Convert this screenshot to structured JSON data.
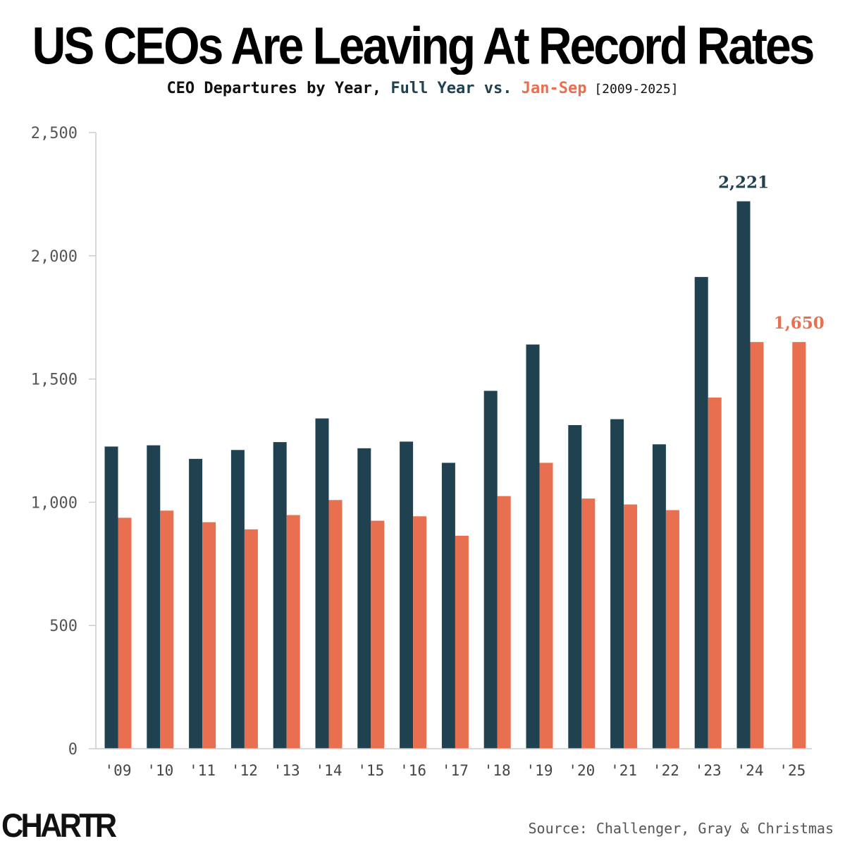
{
  "header": {
    "title": "US CEOs Are Leaving At Record Rates",
    "subtitle_prefix": "CEO Departures by Year, ",
    "subtitle_full_year": "Full Year",
    "subtitle_vs": " vs. ",
    "subtitle_jan_sep": "Jan-Sep",
    "subtitle_range": " [2009-2025]"
  },
  "footer": {
    "logo": "CHARTR",
    "source": "Source: Challenger, Gray & Christmas"
  },
  "colors": {
    "full_year": "#20414f",
    "jan_sep": "#e86f4f"
  },
  "chart_data": {
    "type": "bar",
    "categories": [
      "'09",
      "'10",
      "'11",
      "'12",
      "'13",
      "'14",
      "'15",
      "'16",
      "'17",
      "'18",
      "'19",
      "'20",
      "'21",
      "'22",
      "'23",
      "'24",
      "'25"
    ],
    "series": [
      {
        "name": "Full Year",
        "color": "#20414f",
        "values": [
          1226,
          1231,
          1176,
          1212,
          1244,
          1340,
          1219,
          1246,
          1160,
          1452,
          1640,
          1313,
          1337,
          1235,
          1914,
          2221,
          null
        ]
      },
      {
        "name": "Jan-Sep",
        "color": "#e86f4f",
        "values": [
          937,
          966,
          919,
          890,
          948,
          1009,
          925,
          943,
          864,
          1025,
          1160,
          1015,
          991,
          968,
          1425,
          1650,
          1650
        ]
      }
    ],
    "y_ticks": [
      0,
      500,
      1000,
      1500,
      2000,
      2500
    ],
    "y_tick_labels": [
      "0",
      "500",
      "1,000",
      "1,500",
      "2,000",
      "2,500"
    ],
    "ylim": [
      0,
      2500
    ],
    "annotations": [
      {
        "series": "Full Year",
        "category": "'24",
        "text": "2,221"
      },
      {
        "series": "Jan-Sep",
        "category": "'25",
        "text": "1,650"
      }
    ],
    "grid": false,
    "legend": "in subtitle"
  }
}
